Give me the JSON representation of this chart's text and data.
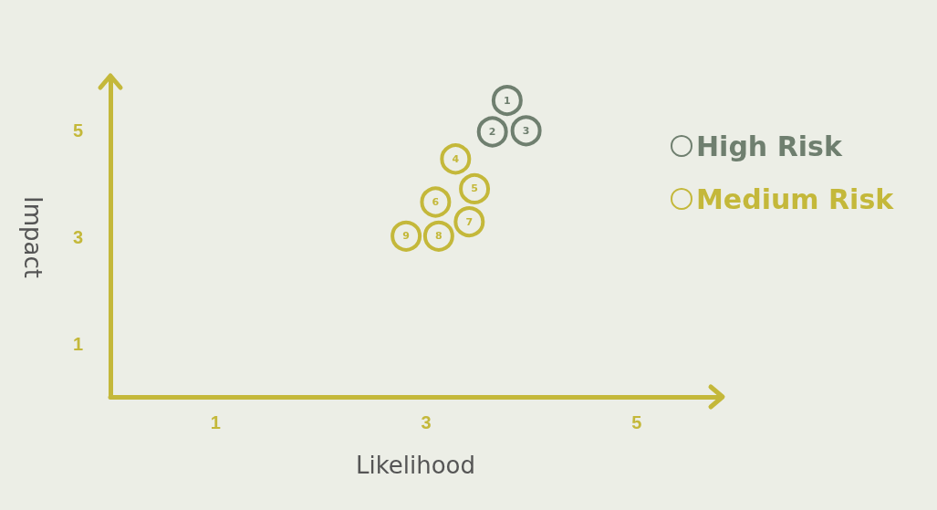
{
  "chart_data": {
    "type": "scatter",
    "xlabel": "Likelihood",
    "ylabel": "Impact",
    "xlim": [
      0,
      5.8
    ],
    "ylim": [
      0,
      6
    ],
    "xticks": [
      1,
      3,
      5
    ],
    "yticks": [
      1,
      3,
      5
    ],
    "grid": false,
    "legend": "right",
    "marker": "circle",
    "series": [
      {
        "name": "High Risk",
        "color": "#6f7f6f",
        "x": [
          3.77,
          3.63,
          3.95
        ],
        "values": [
          5.57,
          4.98,
          5.0
        ]
      },
      {
        "name": "Medium Risk",
        "color": "#c4b83a",
        "x": [
          3.28,
          3.46,
          3.09,
          3.41,
          3.12,
          2.81
        ],
        "values": [
          4.47,
          3.91,
          3.66,
          3.29,
          3.02,
          3.02
        ]
      }
    ],
    "annotations": [
      {
        "text": "1",
        "x": 3.77,
        "y": 5.57
      },
      {
        "text": "2",
        "x": 3.63,
        "y": 4.98
      },
      {
        "text": "3",
        "x": 3.95,
        "y": 5.0
      },
      {
        "text": "4",
        "x": 3.28,
        "y": 4.47
      },
      {
        "text": "5",
        "x": 3.46,
        "y": 3.91
      },
      {
        "text": "6",
        "x": 3.09,
        "y": 3.66
      },
      {
        "text": "7",
        "x": 3.41,
        "y": 3.29
      },
      {
        "text": "8",
        "x": 3.12,
        "y": 3.02
      },
      {
        "text": "9",
        "x": 2.81,
        "y": 3.02
      }
    ]
  }
}
